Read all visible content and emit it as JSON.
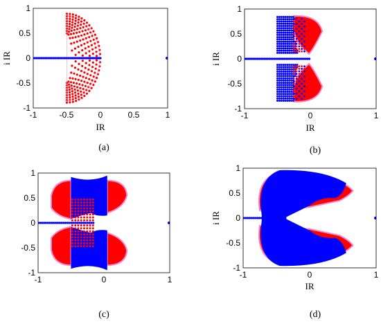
{
  "chart_data": [
    {
      "type": "scatter",
      "caption": "(a)",
      "xlabel": "IR",
      "ylabel": "i IR",
      "xlim": [
        -1,
        1
      ],
      "ylim": [
        -1,
        1
      ],
      "xticks": [
        "-1",
        "-0.5",
        "0",
        "0.5",
        "1"
      ],
      "yticks": [
        "1",
        "0.5",
        "0",
        "-0.5",
        "-1"
      ],
      "grid": false,
      "colors": {
        "red": "#ff0000",
        "blue": "#0000ff",
        "halo": "#ee88cc",
        "axis": "#000000"
      },
      "series": [
        {
          "color": "red",
          "shape": "arc-fan",
          "points": [
            [
              -0.5,
              0.87
            ],
            [
              -0.2,
              0.55
            ],
            [
              -0.05,
              0.15
            ],
            [
              -0.03,
              -0.25
            ],
            [
              -0.25,
              -0.6
            ],
            [
              -0.5,
              -0.87
            ]
          ]
        },
        {
          "color": "blue",
          "shape": "real-axis-line",
          "points": [
            [
              -1,
              0
            ],
            [
              -0.5,
              0
            ],
            [
              0,
              0
            ],
            [
              1,
              0
            ]
          ]
        }
      ]
    },
    {
      "type": "scatter",
      "caption": "(b)",
      "xlabel": "IR",
      "ylabel": "i IR",
      "xlim": [
        -1,
        1
      ],
      "ylim": [
        -1,
        1
      ],
      "xticks": [
        "-1",
        "0",
        "1"
      ],
      "yticks": [
        "1",
        "0.5",
        "0",
        "-0.5",
        "-1"
      ],
      "grid": false,
      "colors": {
        "red": "#ff0000",
        "blue": "#0000ff",
        "halo": "#ee88cc",
        "axis": "#000000"
      },
      "series": [
        {
          "color": "red",
          "shape": "upper-lobe",
          "points": [
            [
              -0.25,
              0.85
            ],
            [
              0.15,
              0.7
            ],
            [
              0.0,
              0.1
            ],
            [
              -0.15,
              0.45
            ]
          ]
        },
        {
          "color": "blue",
          "shape": "upper-lobe",
          "points": [
            [
              -0.5,
              0.85
            ],
            [
              -0.25,
              0.85
            ],
            [
              -0.25,
              0.1
            ],
            [
              -0.5,
              0.1
            ]
          ]
        },
        {
          "color": "red",
          "shape": "lower-lobe",
          "points": [
            [
              -0.25,
              -0.85
            ],
            [
              0.15,
              -0.7
            ],
            [
              0.0,
              -0.1
            ],
            [
              -0.15,
              -0.45
            ]
          ]
        },
        {
          "color": "blue",
          "shape": "lower-lobe",
          "points": [
            [
              -0.5,
              -0.85
            ],
            [
              -0.25,
              -0.85
            ],
            [
              -0.25,
              -0.1
            ],
            [
              -0.5,
              -0.1
            ]
          ]
        },
        {
          "color": "blue",
          "shape": "real-axis-line",
          "points": [
            [
              -1,
              0
            ],
            [
              -0.5,
              0
            ],
            [
              0,
              0
            ],
            [
              1,
              0
            ]
          ]
        }
      ]
    },
    {
      "type": "scatter",
      "caption": "(c)",
      "xlabel": "",
      "ylabel": "",
      "xlim": [
        -1,
        1
      ],
      "ylim": [
        -1,
        1
      ],
      "xticks": [
        "-1",
        "0",
        "1"
      ],
      "yticks": [
        "1",
        "0.5",
        "0",
        "-0.5",
        "-1"
      ],
      "grid": false,
      "colors": {
        "red": "#ff0000",
        "blue": "#0000ff",
        "halo": "#ee88cc",
        "axis": "#000000"
      },
      "series": [
        {
          "color": "red",
          "shape": "wide-lobes",
          "points": [
            [
              -0.8,
              0.85
            ],
            [
              0.35,
              0.85
            ],
            [
              0.35,
              -0.85
            ],
            [
              -0.8,
              -0.85
            ]
          ]
        },
        {
          "color": "blue",
          "shape": "wide-lobes",
          "points": [
            [
              -0.5,
              0.95
            ],
            [
              0.05,
              0.95
            ],
            [
              0.05,
              -0.95
            ],
            [
              -0.5,
              -0.95
            ]
          ]
        },
        {
          "color": "blue",
          "shape": "real-axis-line",
          "points": [
            [
              -1,
              0
            ],
            [
              -0.2,
              0
            ],
            [
              1,
              0
            ]
          ]
        }
      ]
    },
    {
      "type": "scatter",
      "caption": "(d)",
      "xlabel": "IR",
      "ylabel": "i IR",
      "xlim": [
        -1,
        1
      ],
      "ylim": [
        -1,
        1
      ],
      "xticks": [
        "-1",
        "0",
        "1"
      ],
      "yticks": [
        "1",
        "0.5",
        "0",
        "-0.5",
        "-1"
      ],
      "grid": false,
      "colors": {
        "red": "#ff0000",
        "blue": "#0000ff",
        "halo": "#ee88cc",
        "axis": "#000000"
      },
      "series": [
        {
          "color": "red",
          "shape": "crescent",
          "points": [
            [
              -0.75,
              0.9
            ],
            [
              0.65,
              0.65
            ],
            [
              0.65,
              -0.65
            ],
            [
              -0.75,
              -0.9
            ]
          ]
        },
        {
          "color": "blue",
          "shape": "crescent",
          "points": [
            [
              -0.8,
              0.95
            ],
            [
              0.55,
              0.95
            ],
            [
              0.55,
              -0.95
            ],
            [
              -0.8,
              -0.95
            ]
          ]
        },
        {
          "color": "blue",
          "shape": "real-axis-line",
          "points": [
            [
              -1,
              0
            ],
            [
              -0.4,
              0
            ],
            [
              1,
              0
            ]
          ]
        }
      ]
    }
  ]
}
